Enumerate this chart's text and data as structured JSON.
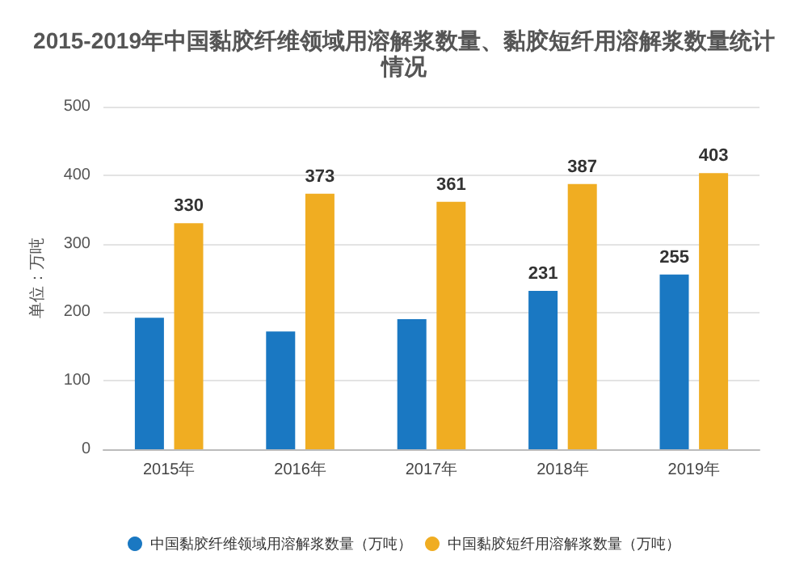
{
  "chart_data": {
    "type": "bar",
    "title": "2015-2019年中国黏胶纤维领域用溶解浆数量、黏胶短纤用溶解浆数量统计情况",
    "ylabel": "单位：万吨",
    "categories": [
      "2015年",
      "2016年",
      "2017年",
      "2018年",
      "2019年"
    ],
    "series": [
      {
        "name": "中国黏胶纤维领域用溶解浆数量（万吨）",
        "color": "#1a78c2",
        "values": [
          192,
          172,
          190,
          231,
          255
        ],
        "value_labels": [
          null,
          null,
          null,
          "231",
          "255"
        ]
      },
      {
        "name": "中国黏胶短纤用溶解浆数量（万吨）",
        "color": "#f0ad22",
        "values": [
          330,
          373,
          361,
          387,
          403
        ],
        "value_labels": [
          "330",
          "373",
          "361",
          "387",
          "403"
        ]
      }
    ],
    "ylim": [
      0,
      500
    ],
    "yticks": [
      0,
      100,
      200,
      300,
      400,
      500
    ],
    "grid": "y",
    "legend": "bottom"
  }
}
